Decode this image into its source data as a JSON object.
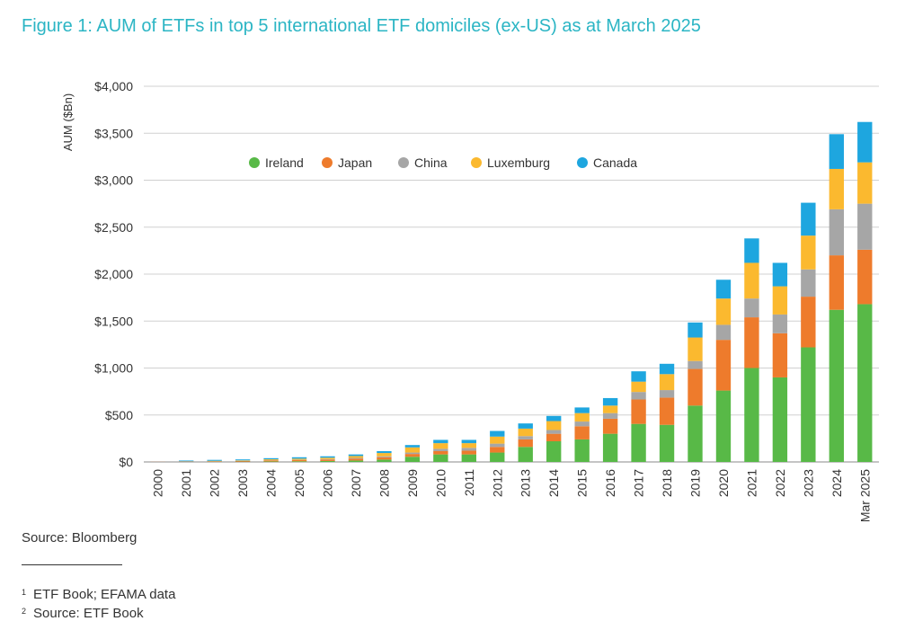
{
  "title": "Figure 1: AUM of ETFs in top 5 international ETF domiciles (ex-US) as at March 2025",
  "source": "Source: Bloomberg",
  "footnotes": [
    {
      "num": "1",
      "text": "ETF Book; EFAMA data"
    },
    {
      "num": "2",
      "text": "Source: ETF Book"
    }
  ],
  "chart_data": {
    "type": "bar",
    "stacked": true,
    "ylabel": "AUM ($Bn)",
    "ylim": [
      0,
      4000
    ],
    "yticks": [
      0,
      500,
      1000,
      1500,
      2000,
      2500,
      3000,
      3500,
      4000
    ],
    "ytick_labels": [
      "$0",
      "$500",
      "$1,000",
      "$1,500",
      "$2,000",
      "$2,500",
      "$3,000",
      "$3,500",
      "$4,000"
    ],
    "grid": true,
    "legend_position": "top-left",
    "categories": [
      "2000",
      "2001",
      "2002",
      "2003",
      "2004",
      "2005",
      "2006",
      "2007",
      "2008",
      "2009",
      "2010",
      "2011",
      "2012",
      "2013",
      "2014",
      "2015",
      "2016",
      "2017",
      "2018",
      "2019",
      "2020",
      "2021",
      "2022",
      "2023",
      "2024",
      "Mar 2025"
    ],
    "series": [
      {
        "name": "Ireland",
        "color": "#58b947",
        "values": [
          0,
          1,
          2,
          3,
          5,
          7,
          10,
          15,
          25,
          55,
          80,
          80,
          100,
          160,
          220,
          240,
          300,
          405,
          395,
          600,
          760,
          1000,
          900,
          1220,
          1620,
          1680
        ]
      },
      {
        "name": "Japan",
        "color": "#ee7b2c",
        "values": [
          1,
          3,
          5,
          7,
          10,
          12,
          15,
          20,
          25,
          30,
          35,
          40,
          60,
          80,
          80,
          140,
          160,
          260,
          290,
          390,
          540,
          540,
          470,
          540,
          580,
          580
        ]
      },
      {
        "name": "China",
        "color": "#a6a6a6",
        "values": [
          0,
          1,
          1,
          2,
          3,
          4,
          5,
          8,
          10,
          15,
          25,
          30,
          35,
          35,
          40,
          50,
          60,
          80,
          80,
          85,
          160,
          200,
          200,
          290,
          490,
          490
        ]
      },
      {
        "name": "Luxemburg",
        "color": "#fbb92f",
        "values": [
          0,
          2,
          4,
          5,
          10,
          12,
          15,
          20,
          35,
          55,
          60,
          50,
          75,
          80,
          95,
          90,
          80,
          110,
          170,
          250,
          280,
          380,
          300,
          360,
          430,
          440
        ]
      },
      {
        "name": "Canada",
        "color": "#1ea6df",
        "values": [
          0,
          8,
          10,
          10,
          12,
          15,
          15,
          17,
          20,
          25,
          35,
          35,
          60,
          55,
          55,
          60,
          80,
          110,
          110,
          160,
          200,
          260,
          250,
          350,
          370,
          430
        ]
      }
    ]
  }
}
